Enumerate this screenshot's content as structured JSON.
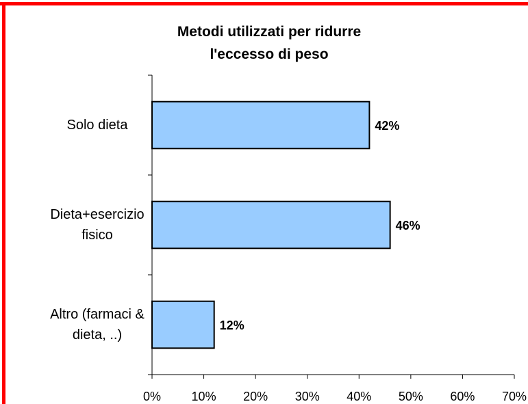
{
  "chart_data": {
    "type": "bar",
    "orientation": "horizontal",
    "title": "Metodi utilizzati per ridurre l'eccesso di peso",
    "categories": [
      "Solo dieta",
      "Dieta+esercizio fisico",
      "Altro (farmaci & dieta, ..)"
    ],
    "values": [
      42,
      46,
      12
    ],
    "value_labels": [
      "42%",
      "46%",
      "12%"
    ],
    "color": "#99ccff",
    "xlim": [
      0,
      70
    ],
    "xticks": [
      {
        "value": 0,
        "label": "0%"
      },
      {
        "value": 10,
        "label": "10%"
      },
      {
        "value": 20,
        "label": "20%"
      },
      {
        "value": 30,
        "label": "30%"
      },
      {
        "value": 40,
        "label": "40%"
      },
      {
        "value": 50,
        "label": "50%"
      },
      {
        "value": 60,
        "label": "60%"
      },
      {
        "value": 70,
        "label": "70%"
      }
    ],
    "grid": false
  }
}
